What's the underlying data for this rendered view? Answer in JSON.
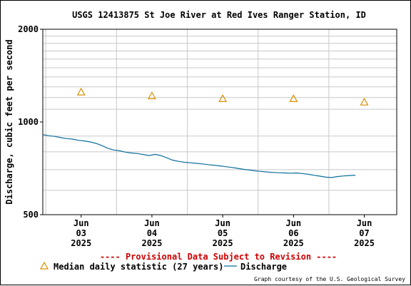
{
  "chart_data": {
    "type": "line",
    "title": "USGS 12413875 St Joe River at Red Ives Ranger Station, ID",
    "ylabel": "Discharge, cubic feet per second",
    "xlabel": "",
    "y_scale": "log",
    "ylim": [
      500,
      2000
    ],
    "y_ticks": [
      {
        "value": 500,
        "label": "500"
      },
      {
        "value": 1000,
        "label": "1000"
      },
      {
        "value": 2000,
        "label": "2000"
      }
    ],
    "y_minor_grid": [
      600,
      700,
      800,
      900,
      1100,
      1200,
      1300,
      1400,
      1500,
      1600,
      1700,
      1800,
      1900
    ],
    "xlim": [
      "2025-06-02T11:00",
      "2025-06-07T11:00"
    ],
    "x_ticks": [
      {
        "date": "2025-06-03T00:00",
        "lines": [
          "Jun",
          "03",
          "2025"
        ]
      },
      {
        "date": "2025-06-04T00:00",
        "lines": [
          "Jun",
          "04",
          "2025"
        ]
      },
      {
        "date": "2025-06-05T00:00",
        "lines": [
          "Jun",
          "05",
          "2025"
        ]
      },
      {
        "date": "2025-06-06T00:00",
        "lines": [
          "Jun",
          "06",
          "2025"
        ]
      },
      {
        "date": "2025-06-07T00:00",
        "lines": [
          "Jun",
          "07",
          "2025"
        ]
      }
    ],
    "x_major_grid": [
      "2025-06-02T12:00",
      "2025-06-03T12:00",
      "2025-06-04T12:00",
      "2025-06-05T12:00",
      "2025-06-06T12:00"
    ],
    "grid": true,
    "series": [
      {
        "name": "Discharge",
        "kind": "line",
        "color": "#0a6e9a",
        "points": [
          [
            "2025-06-02T11:00",
            910
          ],
          [
            "2025-06-02T13:00",
            902
          ],
          [
            "2025-06-02T15:00",
            898
          ],
          [
            "2025-06-02T17:00",
            890
          ],
          [
            "2025-06-02T19:00",
            883
          ],
          [
            "2025-06-02T21:00",
            880
          ],
          [
            "2025-06-02T23:00",
            872
          ],
          [
            "2025-06-03T01:00",
            868
          ],
          [
            "2025-06-03T03:00",
            862
          ],
          [
            "2025-06-03T05:00",
            852
          ],
          [
            "2025-06-03T07:00",
            838
          ],
          [
            "2025-06-03T09:00",
            822
          ],
          [
            "2025-06-03T11:00",
            811
          ],
          [
            "2025-06-03T13:00",
            806
          ],
          [
            "2025-06-03T15:00",
            798
          ],
          [
            "2025-06-03T17:00",
            793
          ],
          [
            "2025-06-03T19:00",
            790
          ],
          [
            "2025-06-03T21:00",
            784
          ],
          [
            "2025-06-03T23:00",
            778
          ],
          [
            "2025-06-04T01:00",
            785
          ],
          [
            "2025-06-04T03:00",
            778
          ],
          [
            "2025-06-04T05:00",
            765
          ],
          [
            "2025-06-04T07:00",
            752
          ],
          [
            "2025-06-04T09:00",
            745
          ],
          [
            "2025-06-04T11:00",
            740
          ],
          [
            "2025-06-04T13:00",
            737
          ],
          [
            "2025-06-04T15:00",
            734
          ],
          [
            "2025-06-04T17:00",
            731
          ],
          [
            "2025-06-04T19:00",
            727
          ],
          [
            "2025-06-04T21:00",
            724
          ],
          [
            "2025-06-04T23:00",
            720
          ],
          [
            "2025-06-05T01:00",
            716
          ],
          [
            "2025-06-05T03:00",
            712
          ],
          [
            "2025-06-05T05:00",
            707
          ],
          [
            "2025-06-05T07:00",
            702
          ],
          [
            "2025-06-05T09:00",
            698
          ],
          [
            "2025-06-05T11:00",
            694
          ],
          [
            "2025-06-05T13:00",
            691
          ],
          [
            "2025-06-05T15:00",
            688
          ],
          [
            "2025-06-05T17:00",
            686
          ],
          [
            "2025-06-05T19:00",
            684
          ],
          [
            "2025-06-05T21:00",
            683
          ],
          [
            "2025-06-05T23:00",
            682
          ],
          [
            "2025-06-06T01:00",
            683
          ],
          [
            "2025-06-06T03:00",
            680
          ],
          [
            "2025-06-06T05:00",
            676
          ],
          [
            "2025-06-06T07:00",
            671
          ],
          [
            "2025-06-06T09:00",
            667
          ],
          [
            "2025-06-06T11:00",
            662
          ],
          [
            "2025-06-06T13:00",
            660
          ],
          [
            "2025-06-06T15:00",
            665
          ],
          [
            "2025-06-06T17:00",
            668
          ],
          [
            "2025-06-06T19:00",
            670
          ],
          [
            "2025-06-06T21:00",
            672
          ]
        ]
      },
      {
        "name": "Median daily statistic (27 years)",
        "kind": "markers",
        "marker": "triangle",
        "color": "#d99000",
        "points": [
          [
            "2025-06-03T00:00",
            1250
          ],
          [
            "2025-06-04T00:00",
            1215
          ],
          [
            "2025-06-05T00:00",
            1190
          ],
          [
            "2025-06-06T00:00",
            1190
          ],
          [
            "2025-06-07T00:00",
            1160
          ]
        ]
      }
    ],
    "legend": {
      "placement": "bottom",
      "median_label": "Median daily statistic (27 years)",
      "discharge_label": "Discharge"
    }
  },
  "notice": "---- Provisional Data Subject to Revision ----",
  "credit": "Graph courtesy of the U.S. Geological Survey",
  "colors": {
    "frame": "#000000",
    "grid": "#c8c8c8",
    "text": "#000000",
    "notice": "#cc0000",
    "discharge": "#0a6e9a",
    "median": "#d99000"
  }
}
